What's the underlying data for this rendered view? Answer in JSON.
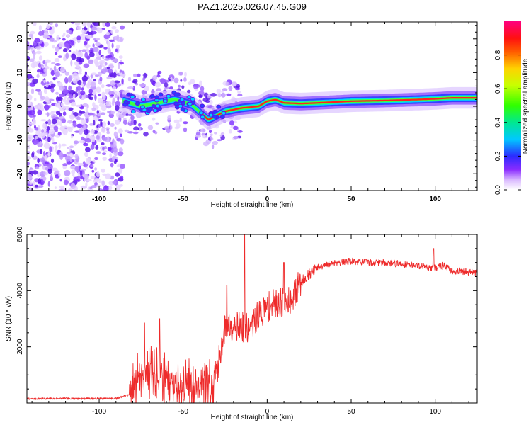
{
  "title": "PAZ1.2025.026.07.45.G09",
  "chart_data": [
    {
      "type": "heatmap",
      "name": "spectrogram",
      "xlabel": "Height of straight line (km)",
      "ylabel": "Frequency (Hz)",
      "xlim": [
        -143,
        125
      ],
      "ylim": [
        -25,
        25
      ],
      "xticks": [
        -100,
        -50,
        0,
        50,
        100
      ],
      "yticks": [
        -20,
        -10,
        0,
        10,
        20
      ],
      "grid": false,
      "colorbar": {
        "label": "Normalized spectral amplitude",
        "range": [
          0,
          1
        ],
        "ticks": [
          0.0,
          0.2,
          0.4,
          0.6,
          0.8
        ],
        "tick_labels": [
          "0.0",
          "0.2",
          "0.4",
          "0.6",
          "0.8"
        ],
        "colormap": "rainbow (white→violet→blue→cyan→green→yellow→red→magenta)"
      },
      "ridge_frequency_hz": {
        "x": [
          -85,
          -75,
          -65,
          -55,
          -45,
          -35,
          -25,
          -15,
          -5,
          0,
          5,
          10,
          20,
          30,
          50,
          70,
          90,
          100,
          110,
          125
        ],
        "y": [
          1.5,
          0,
          1,
          2,
          0.5,
          -4,
          -1.5,
          -0.5,
          0,
          1.5,
          2,
          1,
          0.8,
          1,
          1.5,
          1.7,
          2,
          2.2,
          2.5,
          2.5
        ]
      },
      "noise_region_x": [
        -143,
        -86
      ]
    },
    {
      "type": "line",
      "name": "snr",
      "xlabel": "Height of straight line (km)",
      "ylabel": "SNR (10 * v/v)",
      "xlim": [
        -143,
        125
      ],
      "ylim": [
        0,
        6000
      ],
      "xticks": [
        -100,
        -50,
        0,
        50,
        100
      ],
      "yticks": [
        2000,
        4000,
        6000
      ],
      "grid": false,
      "series": [
        {
          "name": "SNR",
          "color": "#ee2b2b",
          "envelope_x": [
            -143,
            -120,
            -90,
            -82,
            -75,
            -65,
            -55,
            -45,
            -35,
            -30,
            -25,
            -20,
            -15,
            -10,
            -5,
            0,
            5,
            10,
            15,
            20,
            25,
            30,
            40,
            50,
            60,
            70,
            80,
            90,
            100,
            105,
            110,
            125
          ],
          "envelope_y": [
            150,
            160,
            160,
            300,
            1150,
            1000,
            700,
            650,
            500,
            1100,
            2700,
            2800,
            2700,
            2650,
            3150,
            3400,
            3550,
            3600,
            3750,
            4300,
            4600,
            4800,
            5000,
            5050,
            5000,
            5000,
            4950,
            4900,
            4800,
            4900,
            4700,
            4650
          ],
          "spikes": [
            {
              "x": -13.5,
              "y": 6000
            },
            {
              "x": -24,
              "y": 4200
            },
            {
              "x": -73,
              "y": 2850
            },
            {
              "x": -64,
              "y": 3000
            },
            {
              "x": 10,
              "y": 5000
            },
            {
              "x": 99,
              "y": 5500
            }
          ]
        }
      ]
    }
  ]
}
